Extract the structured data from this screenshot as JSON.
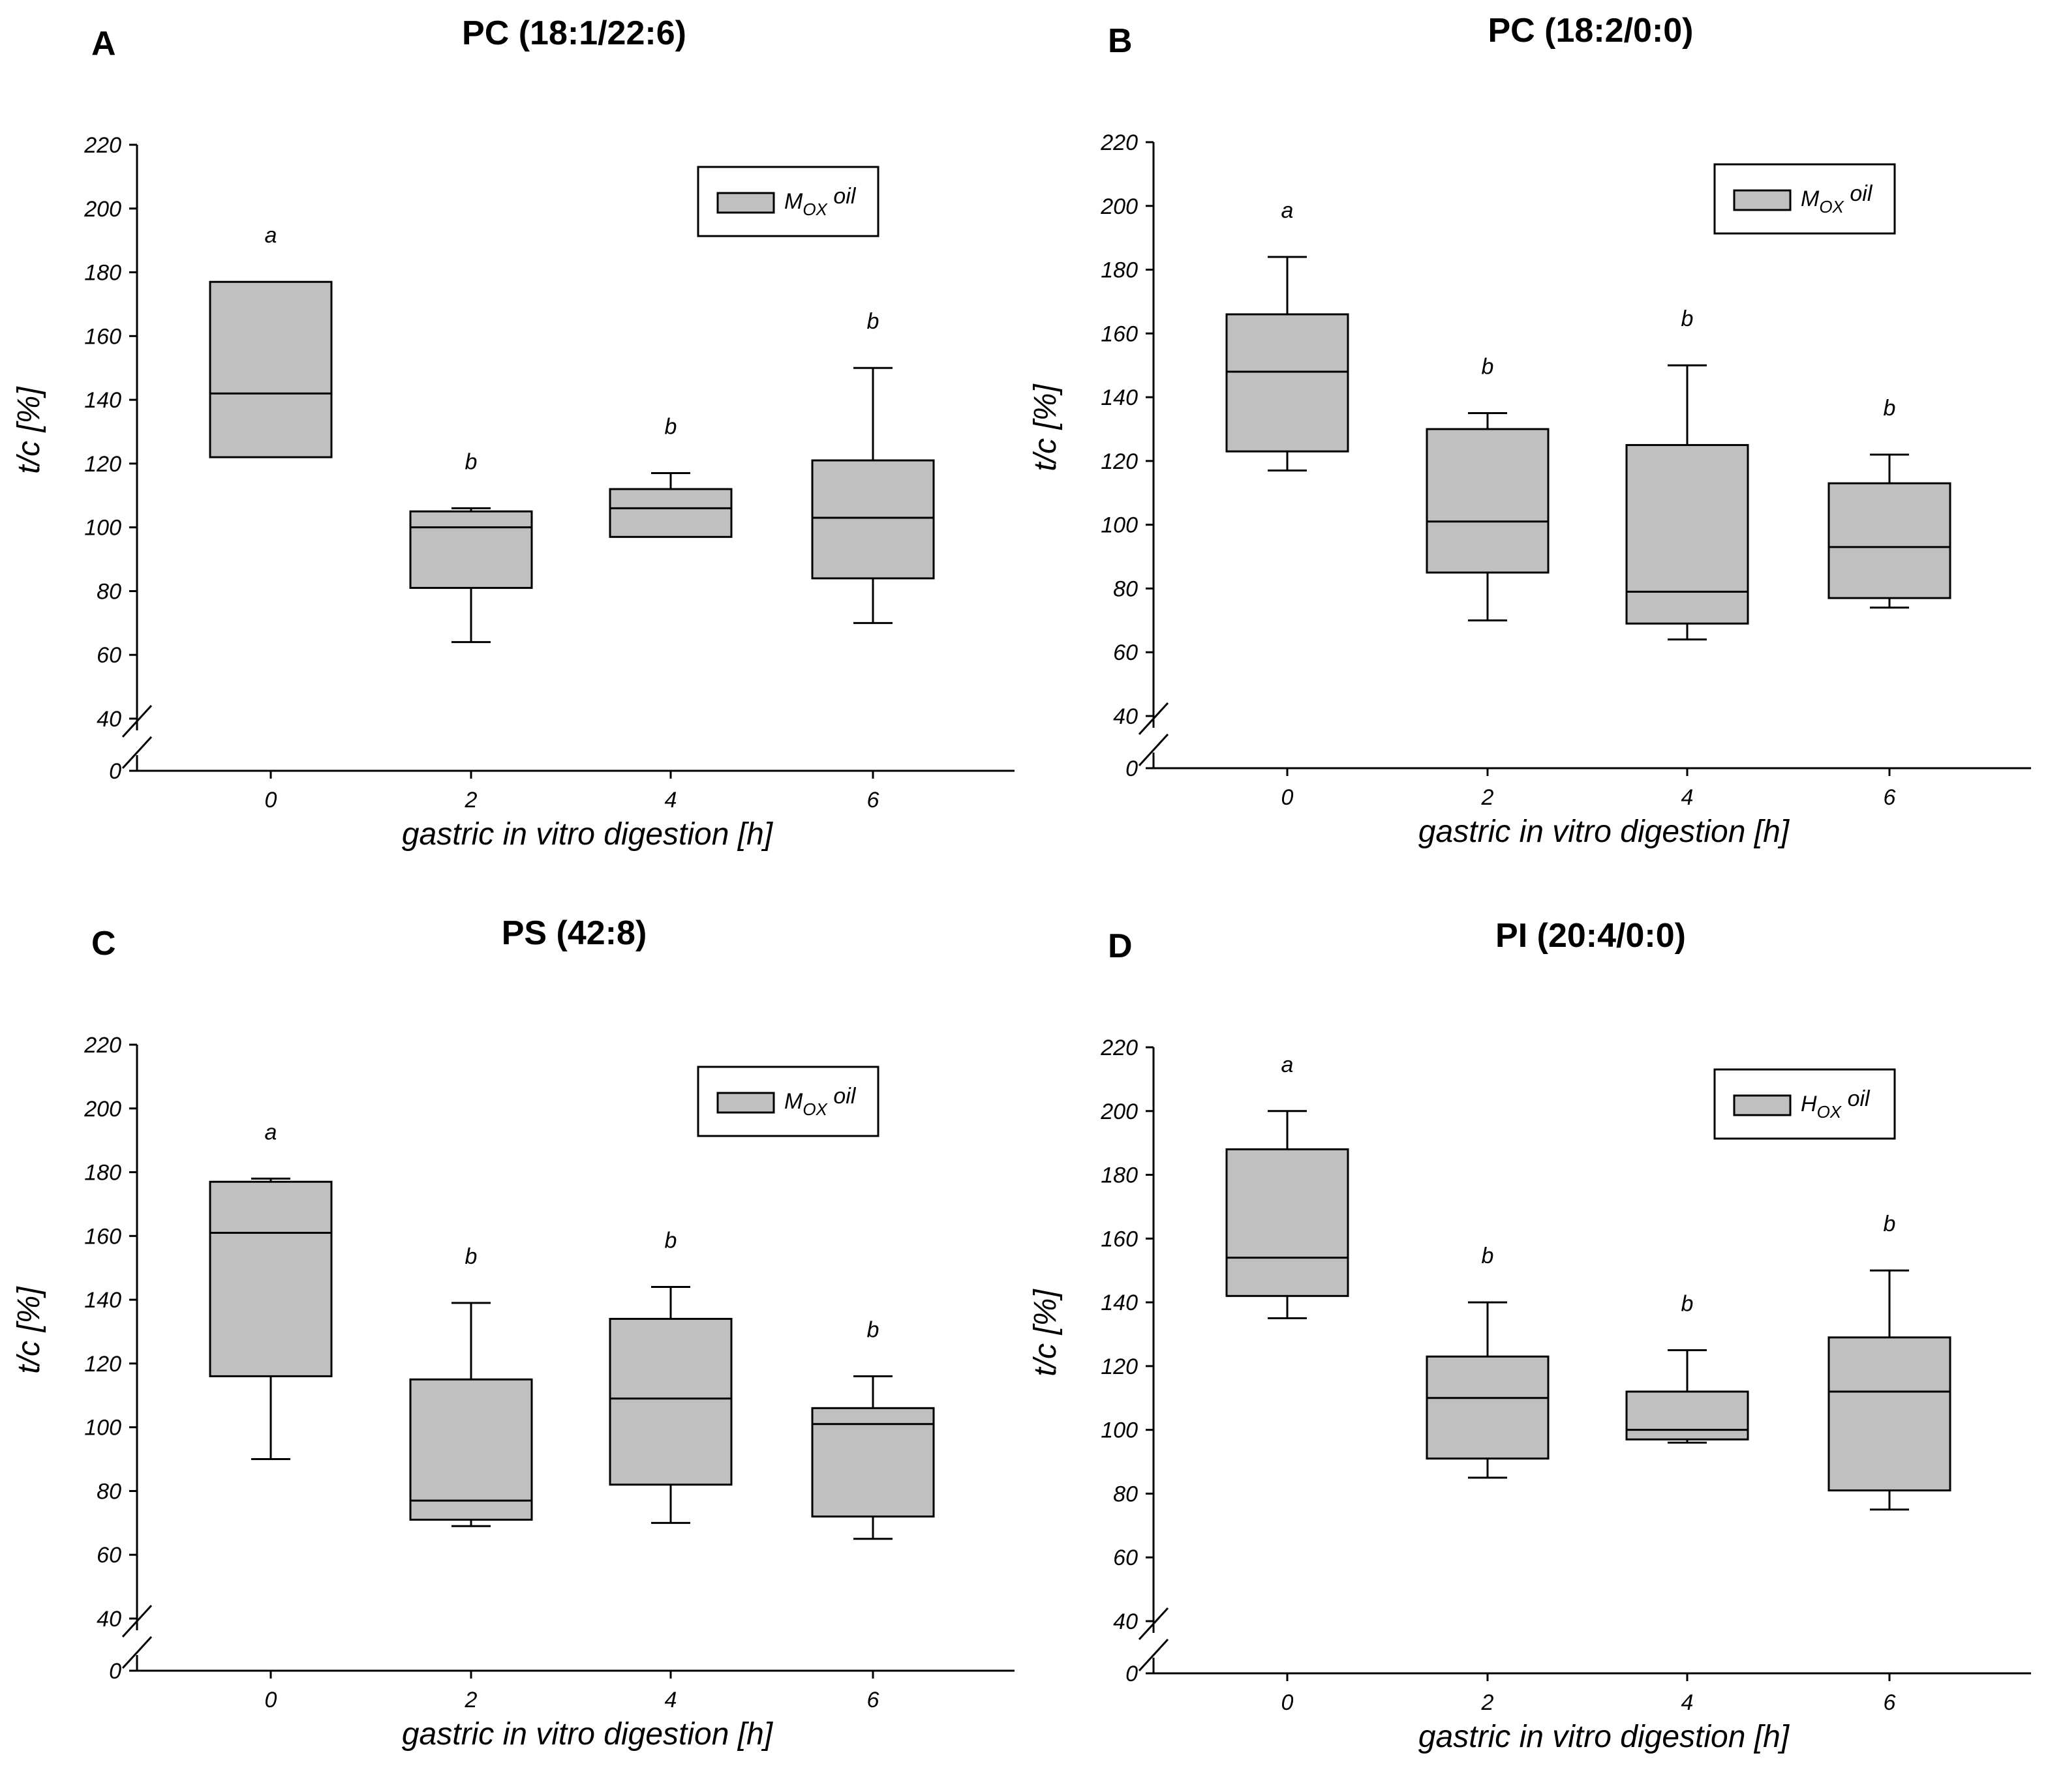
{
  "colors": {
    "box_fill": "#c0c0c0",
    "stroke": "#000000",
    "background": "#ffffff"
  },
  "chart_data": [
    {
      "type": "box",
      "panel": "A",
      "title": "PC (18:1/22:6)",
      "xlabel": "gastric in vitro digestion [h]",
      "ylabel": "t/c [%]",
      "yticks": [
        0,
        40,
        60,
        80,
        100,
        120,
        140,
        160,
        180,
        200,
        220
      ],
      "ylim": [
        40,
        220
      ],
      "axis_break": true,
      "legend": {
        "prefix": "M",
        "sub": "OX",
        "suffix": " oil",
        "position": "top-right"
      },
      "categories": [
        "0",
        "2",
        "4",
        "6"
      ],
      "boxes": [
        {
          "whisker_low": 122,
          "q1": 122,
          "median": 142,
          "q3": 177,
          "whisker_high": 177,
          "sig": "a"
        },
        {
          "whisker_low": 64,
          "q1": 81,
          "median": 100,
          "q3": 105,
          "whisker_high": 106,
          "sig": "b"
        },
        {
          "whisker_low": 97,
          "q1": 97,
          "median": 106,
          "q3": 112,
          "whisker_high": 117,
          "sig": "b"
        },
        {
          "whisker_low": 70,
          "q1": 84,
          "median": 103,
          "q3": 121,
          "whisker_high": 150,
          "sig": "b"
        }
      ]
    },
    {
      "type": "box",
      "panel": "B",
      "title": "PC (18:2/0:0)",
      "xlabel": "gastric in vitro digestion [h]",
      "ylabel": "t/c [%]",
      "yticks": [
        0,
        40,
        60,
        80,
        100,
        120,
        140,
        160,
        180,
        200,
        220
      ],
      "ylim": [
        40,
        220
      ],
      "axis_break": true,
      "legend": {
        "prefix": "M",
        "sub": "OX",
        "suffix": " oil",
        "position": "top-right"
      },
      "categories": [
        "0",
        "2",
        "4",
        "6"
      ],
      "boxes": [
        {
          "whisker_low": 117,
          "q1": 123,
          "median": 148,
          "q3": 166,
          "whisker_high": 184,
          "sig": "a"
        },
        {
          "whisker_low": 70,
          "q1": 85,
          "median": 101,
          "q3": 130,
          "whisker_high": 135,
          "sig": "b"
        },
        {
          "whisker_low": 64,
          "q1": 69,
          "median": 79,
          "q3": 125,
          "whisker_high": 150,
          "sig": "b"
        },
        {
          "whisker_low": 74,
          "q1": 77,
          "median": 93,
          "q3": 113,
          "whisker_high": 122,
          "sig": "b"
        }
      ]
    },
    {
      "type": "box",
      "panel": "C",
      "title": "PS (42:8)",
      "xlabel": "gastric in vitro digestion [h]",
      "ylabel": "t/c [%]",
      "yticks": [
        0,
        40,
        60,
        80,
        100,
        120,
        140,
        160,
        180,
        200,
        220
      ],
      "ylim": [
        40,
        220
      ],
      "axis_break": true,
      "legend": {
        "prefix": "M",
        "sub": "OX",
        "suffix": " oil",
        "position": "top-right"
      },
      "categories": [
        "0",
        "2",
        "4",
        "6"
      ],
      "boxes": [
        {
          "whisker_low": 90,
          "q1": 116,
          "median": 161,
          "q3": 177,
          "whisker_high": 178,
          "sig": "a"
        },
        {
          "whisker_low": 69,
          "q1": 71,
          "median": 77,
          "q3": 115,
          "whisker_high": 139,
          "sig": "b"
        },
        {
          "whisker_low": 70,
          "q1": 82,
          "median": 109,
          "q3": 134,
          "whisker_high": 144,
          "sig": "b"
        },
        {
          "whisker_low": 65,
          "q1": 72,
          "median": 101,
          "q3": 106,
          "whisker_high": 116,
          "sig": "b"
        }
      ]
    },
    {
      "type": "box",
      "panel": "D",
      "title": "PI (20:4/0:0)",
      "xlabel": "gastric in vitro digestion [h]",
      "ylabel": "t/c [%]",
      "yticks": [
        0,
        40,
        60,
        80,
        100,
        120,
        140,
        160,
        180,
        200,
        220
      ],
      "ylim": [
        40,
        220
      ],
      "axis_break": true,
      "legend": {
        "prefix": "H",
        "sub": "OX",
        "suffix": " oil",
        "position": "top-right"
      },
      "categories": [
        "0",
        "2",
        "4",
        "6"
      ],
      "boxes": [
        {
          "whisker_low": 135,
          "q1": 142,
          "median": 154,
          "q3": 188,
          "whisker_high": 200,
          "sig": "a"
        },
        {
          "whisker_low": 85,
          "q1": 91,
          "median": 110,
          "q3": 123,
          "whisker_high": 140,
          "sig": "b"
        },
        {
          "whisker_low": 96,
          "q1": 97,
          "median": 100,
          "q3": 112,
          "whisker_high": 125,
          "sig": "b"
        },
        {
          "whisker_low": 75,
          "q1": 81,
          "median": 112,
          "q3": 129,
          "whisker_high": 150,
          "sig": "b"
        }
      ]
    }
  ]
}
